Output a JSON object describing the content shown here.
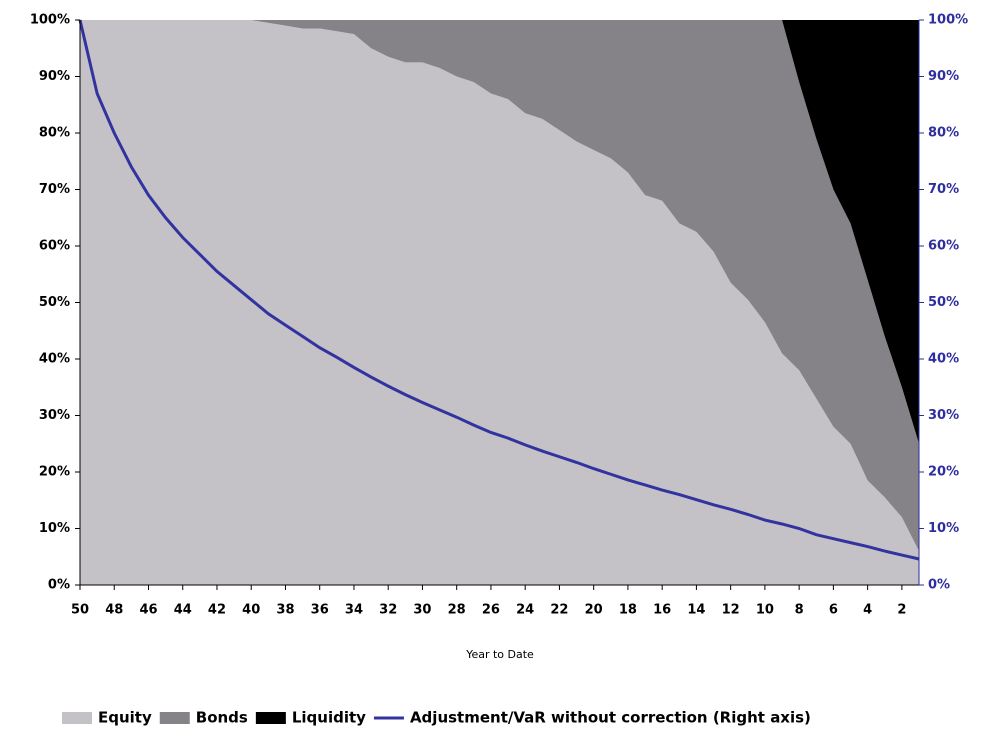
{
  "chart_data": {
    "type": "stacked_area_line",
    "x_label": "Year to Date",
    "x": [
      50,
      49,
      48,
      47,
      46,
      45,
      44,
      43,
      42,
      41,
      40,
      39,
      38,
      37,
      36,
      35,
      34,
      33,
      32,
      31,
      30,
      29,
      28,
      27,
      26,
      25,
      24,
      23,
      22,
      21,
      20,
      19,
      18,
      17,
      16,
      15,
      14,
      13,
      12,
      11,
      10,
      9,
      8,
      7,
      6,
      5,
      4,
      3,
      2,
      1
    ],
    "xlim": [
      50,
      1
    ],
    "xticks": [
      50,
      48,
      46,
      44,
      42,
      40,
      38,
      36,
      34,
      32,
      30,
      28,
      26,
      24,
      22,
      20,
      18,
      16,
      14,
      12,
      10,
      8,
      6,
      4,
      2
    ],
    "ylim": [
      0,
      100
    ],
    "yticks": [
      {
        "value": 0,
        "label": "0%"
      },
      {
        "value": 10,
        "label": "10%"
      },
      {
        "value": 20,
        "label": "20%"
      },
      {
        "value": 30,
        "label": "30%"
      },
      {
        "value": 40,
        "label": "40%"
      },
      {
        "value": 50,
        "label": "50%"
      },
      {
        "value": 60,
        "label": "60%"
      },
      {
        "value": 70,
        "label": "70%"
      },
      {
        "value": 80,
        "label": "80%"
      },
      {
        "value": 90,
        "label": "90%"
      },
      {
        "value": 100,
        "label": "100%"
      }
    ],
    "y2lim": [
      0,
      100
    ],
    "y2ticks": [
      {
        "value": 0,
        "label": "0%"
      },
      {
        "value": 10,
        "label": "10%"
      },
      {
        "value": 20,
        "label": "20%"
      },
      {
        "value": 30,
        "label": "30%"
      },
      {
        "value": 40,
        "label": "40%"
      },
      {
        "value": 50,
        "label": "50%"
      },
      {
        "value": 60,
        "label": "60%"
      },
      {
        "value": 70,
        "label": "70%"
      },
      {
        "value": 80,
        "label": "80%"
      },
      {
        "value": 90,
        "label": "90%"
      },
      {
        "value": 100,
        "label": "100%"
      }
    ],
    "y2_color": "#2e2e9e",
    "legend": "bottom",
    "series": [
      {
        "name": "Equity",
        "color": "#c4c2c6",
        "values": [
          100,
          100,
          100,
          100,
          100,
          100,
          100,
          100,
          100,
          100,
          100,
          99.5,
          99,
          98.5,
          98.5,
          98,
          97.5,
          95,
          93.5,
          92.5,
          92.5,
          91.5,
          90,
          89,
          87,
          86,
          83.5,
          82.5,
          80.5,
          78.5,
          77,
          75.5,
          73,
          69,
          68,
          64,
          62.5,
          59,
          53.5,
          50.5,
          46.5,
          41,
          38,
          33,
          28,
          25,
          18.5,
          15.5,
          12,
          6
        ]
      },
      {
        "name": "Bonds",
        "color": "#858387",
        "values": [
          0,
          0,
          0,
          0,
          0,
          0,
          0,
          0,
          0,
          0,
          0,
          0.5,
          1,
          1.5,
          1.5,
          2,
          2.5,
          5,
          6.5,
          7.5,
          7.5,
          8.5,
          10,
          11,
          13,
          14,
          16.5,
          17.5,
          19.5,
          21.5,
          23,
          24.5,
          27,
          31,
          32,
          36,
          37.5,
          41,
          46.5,
          49.5,
          53.5,
          59,
          51,
          46,
          42,
          39,
          35.5,
          28.5,
          23,
          19
        ]
      },
      {
        "name": "Liquidity",
        "color": "#000000",
        "values": [
          0,
          0,
          0,
          0,
          0,
          0,
          0,
          0,
          0,
          0,
          0,
          0,
          0,
          0,
          0,
          0,
          0,
          0,
          0,
          0,
          0,
          0,
          0,
          0,
          0,
          0,
          0,
          0,
          0,
          0,
          0,
          0,
          0,
          0,
          0,
          0,
          0,
          0,
          0,
          0,
          0,
          0,
          11,
          21,
          30,
          36,
          46,
          56,
          65,
          75
        ]
      },
      {
        "name": "Adjustment/VaR without correction (Right axis)",
        "color": "#3333a0",
        "axis": "y2",
        "values": [
          100,
          87,
          80,
          74,
          69,
          65,
          61.5,
          58.5,
          55.5,
          53,
          50.5,
          48,
          46,
          44,
          42,
          40.3,
          38.5,
          36.8,
          35.2,
          33.7,
          32.3,
          31,
          29.7,
          28.3,
          27,
          26,
          24.8,
          23.7,
          22.7,
          21.7,
          20.6,
          19.6,
          18.6,
          17.7,
          16.8,
          16,
          15.1,
          14.2,
          13.4,
          12.5,
          11.5,
          10.8,
          10,
          8.9,
          8.2,
          7.5,
          6.8,
          6,
          5.3,
          4.6
        ]
      }
    ]
  }
}
